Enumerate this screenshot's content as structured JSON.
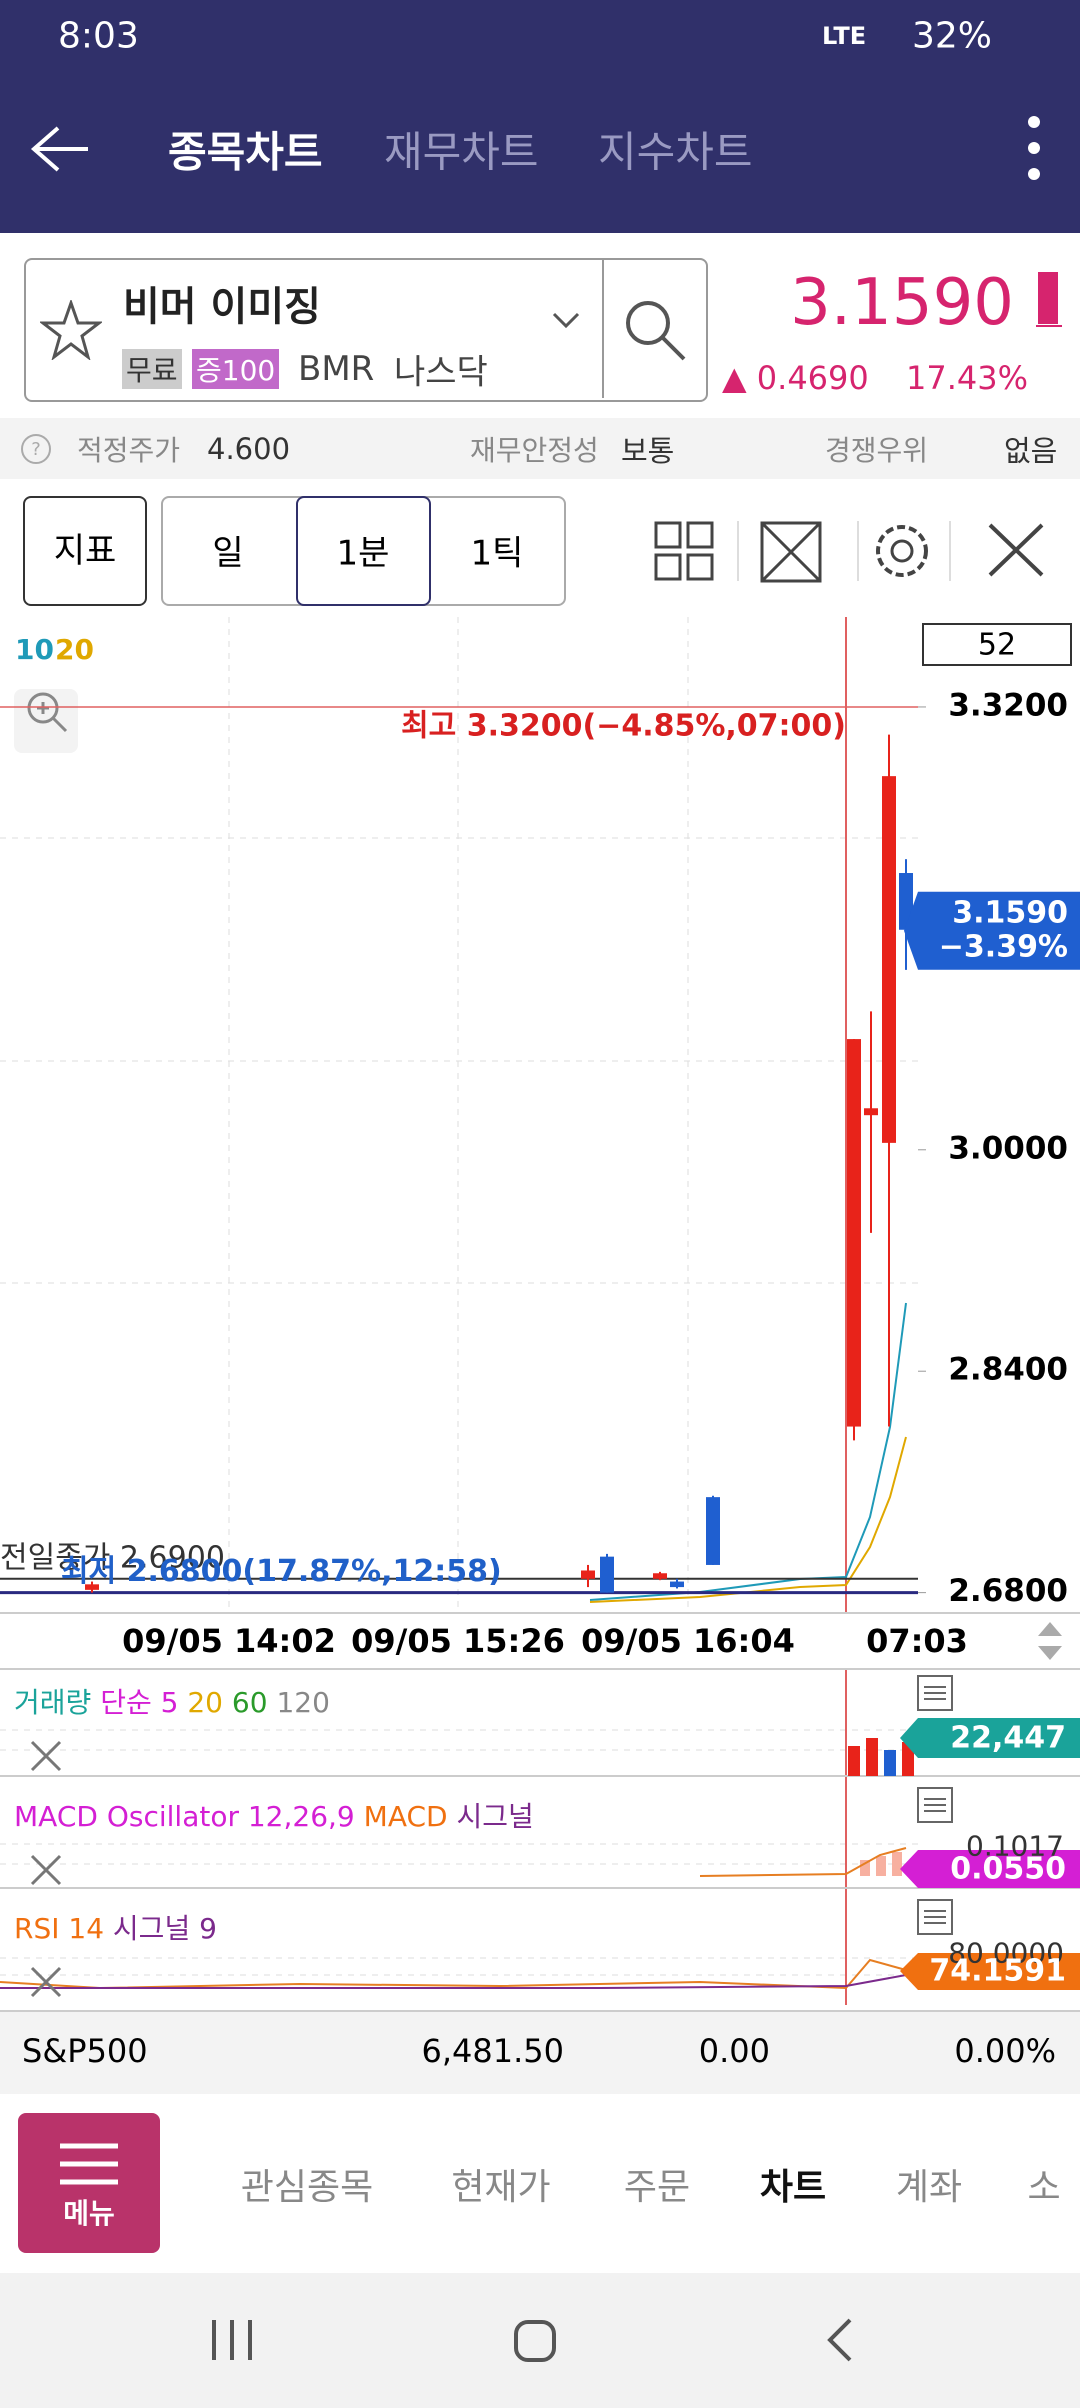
{
  "status_bar": {
    "time": "8:03",
    "network": "LTE",
    "battery": "32%"
  },
  "header": {
    "tabs": [
      "종목차트",
      "재무차트",
      "지수차트"
    ]
  },
  "stock": {
    "name": "비머 이미징",
    "badges": [
      "무료",
      "증100"
    ],
    "ticker": "BMR",
    "market": "나스닥",
    "price": "3.1590",
    "change": "▲ 0.4690",
    "change_pct": "17.43%"
  },
  "info": [
    {
      "label": "적정주가",
      "value": "4.600"
    },
    {
      "label": "재무안정성",
      "value": "보통"
    },
    {
      "label": "경쟁우위",
      "value": "없음"
    }
  ],
  "toolbar": {
    "indicator": "지표",
    "periods": [
      "일",
      "1분",
      "1틱"
    ]
  },
  "chart": {
    "type": "candlestick",
    "count_box": "52",
    "ma_legend": [
      "10",
      "20"
    ],
    "high_label": "최고 3.3200(−4.85%,07:00)",
    "prev_close_label": "전일종가 2.6900",
    "prev_close": 2.69,
    "low_label": "최저 2.6800(17.87%,12:58)",
    "current": {
      "value": 3.159,
      "label": "3.1590"
    },
    "current_change": "−3.39%",
    "ylim": [
      2.666,
      3.385
    ],
    "yticks": [
      {
        "value": 3.32,
        "label": "3.3200"
      },
      {
        "value": 3.0,
        "label": "3.0000"
      },
      {
        "value": 2.84,
        "label": "2.8400"
      },
      {
        "value": 2.68,
        "label": "2.6800"
      }
    ],
    "x_labels": [
      "09/05 14:02",
      "09/05 15:26",
      "09/05 16:04",
      "07:03"
    ],
    "candles": [
      {
        "open": 2.682,
        "high": 2.688,
        "low": 2.68,
        "close": 2.686
      },
      {
        "open": 2.69,
        "high": 2.7,
        "low": 2.684,
        "close": 2.696
      },
      {
        "open": 2.706,
        "high": 2.708,
        "low": 2.68,
        "close": 2.68
      },
      {
        "open": 2.69,
        "high": 2.695,
        "low": 2.689,
        "close": 2.694
      },
      {
        "open": 2.688,
        "high": 2.69,
        "low": 2.683,
        "close": 2.684
      },
      {
        "open": 2.749,
        "high": 2.75,
        "low": 2.7,
        "close": 2.7
      },
      {
        "open": 2.8,
        "high": 3.08,
        "low": 2.79,
        "close": 3.08
      },
      {
        "open": 3.025,
        "high": 3.1,
        "low": 2.94,
        "close": 3.03
      },
      {
        "open": 3.005,
        "high": 3.3,
        "low": 2.8,
        "close": 3.27
      },
      {
        "open": 3.2,
        "high": 3.21,
        "low": 3.13,
        "close": 3.159
      }
    ]
  },
  "panels": [
    {
      "title": "거래량",
      "periods": [
        "단순 5",
        "20",
        "60",
        "120"
      ],
      "value": "22,447"
    },
    {
      "title": "MACD Oscillator 12,26,9",
      "extra": [
        "MACD",
        "시그널"
      ],
      "value": "0.0550",
      "partial": "0.1017"
    },
    {
      "title": "RSI 14",
      "extra": [
        "시그널 9"
      ],
      "value": "74.1591",
      "partial": "80.0000"
    }
  ],
  "index_row": {
    "name": "S&P500",
    "value": "6,481.50",
    "change": "0.00",
    "change_pct": "0.00%"
  },
  "bottom_nav": {
    "menu": "메뉴",
    "items": [
      "관심종목",
      "현재가",
      "주문",
      "차트",
      "계좌",
      "소"
    ]
  }
}
